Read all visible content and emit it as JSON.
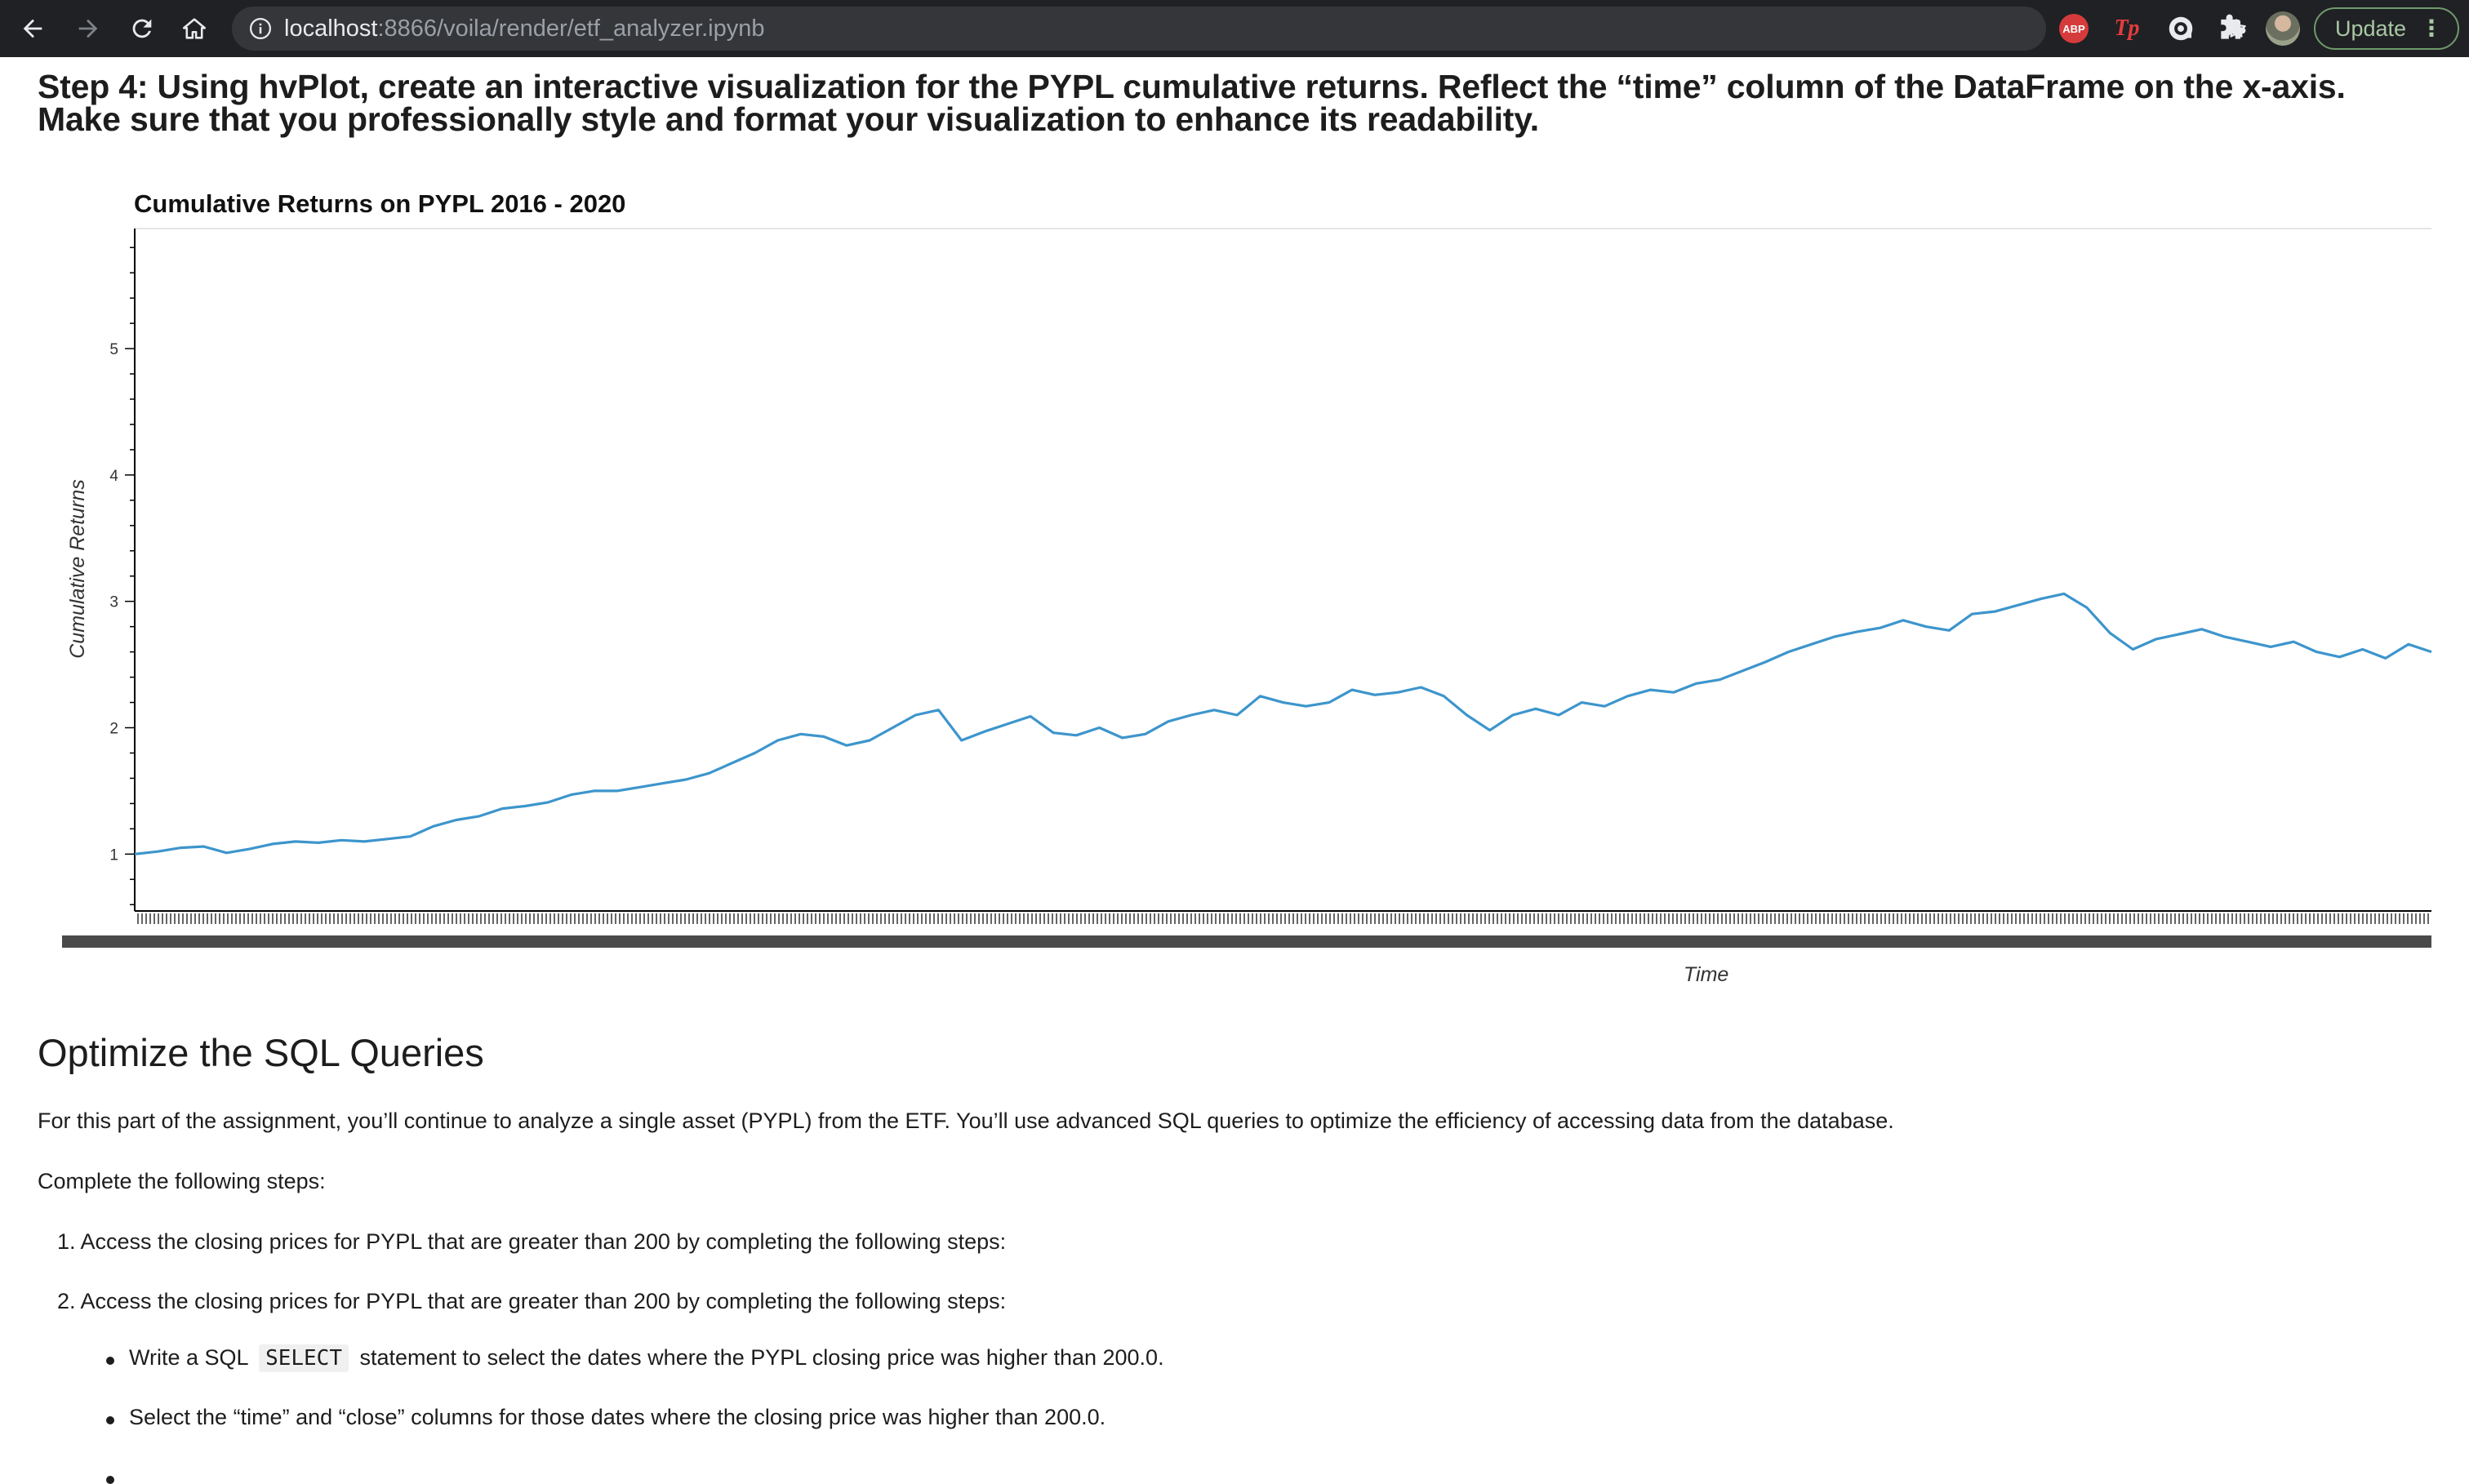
{
  "browser": {
    "url_host": "localhost",
    "url_path": ":8866/voila/render/etf_analyzer.ipynb",
    "extensions": [
      "ABP",
      "Tp"
    ],
    "update_label": "Update",
    "icons": [
      "back-arrow-icon",
      "forward-arrow-icon",
      "reload-icon",
      "home-icon",
      "info-icon",
      "share-icon",
      "star-icon",
      "puzzle-icon",
      "kebab-menu-icon"
    ]
  },
  "notebook": {
    "step_heading": "Step 4: Using hvPlot, create an interactive visualization for the PYPL cumulative returns. Reflect the “time” column of the DataFrame on the x-axis. Make sure that you professionally style and format your visualization to enhance its readability.",
    "section_heading": "Optimize the SQL Queries",
    "intro": "For this part of the assignment, you’ll continue to analyze a single asset (PYPL) from the ETF. You’ll use advanced SQL queries to optimize the efficiency of accessing data from the database.",
    "steps_intro": "Complete the following steps:",
    "list_items": [
      "1. Access the closing prices for PYPL that are greater than 200 by completing the following steps:",
      "2. Access the closing prices for PYPL that are greater than 200 by completing the following steps:"
    ],
    "sub_items": [
      {
        "before": "Write a SQL ",
        "code": "SELECT",
        "after": " statement to select the dates where the PYPL closing price was higher than 200.0."
      },
      {
        "before": "Select the “time” and “close” columns for those dates where the closing price was higher than 200.0."
      }
    ]
  },
  "chart_data": {
    "type": "line",
    "title": "Cumulative Returns on PYPL 2016 - 2020",
    "xlabel": "Time",
    "ylabel": "Cumulative Returns",
    "yticks": [
      1,
      2,
      3,
      4,
      5
    ],
    "ylim": [
      0.55,
      5.95
    ],
    "line_color": "#3d95cc",
    "grid": false,
    "series": [
      {
        "x": [
          0,
          1,
          2,
          3,
          4,
          5,
          6,
          7,
          8,
          9,
          10,
          11,
          12,
          13,
          14,
          15,
          16,
          17,
          18,
          19,
          20,
          21,
          22,
          23,
          24,
          25,
          26,
          27,
          28,
          29,
          30,
          31,
          32,
          33,
          34,
          35,
          36,
          37,
          38,
          39,
          40,
          41,
          42,
          43,
          44,
          45,
          46,
          47,
          48,
          49,
          50,
          51,
          52,
          53,
          54,
          55,
          56,
          57,
          58,
          59,
          60,
          61,
          62,
          63,
          64,
          65,
          66,
          67,
          68,
          69,
          70,
          71,
          72,
          73,
          74,
          75,
          76,
          77,
          78,
          79,
          80,
          81,
          82,
          83,
          84,
          85,
          86,
          87,
          88,
          89,
          90,
          91,
          92,
          93,
          94,
          95,
          96,
          97,
          98,
          99,
          100
        ],
        "values": [
          1.0,
          1.02,
          1.05,
          1.06,
          1.01,
          1.04,
          1.08,
          1.1,
          1.09,
          1.11,
          1.1,
          1.12,
          1.14,
          1.22,
          1.27,
          1.3,
          1.36,
          1.38,
          1.41,
          1.47,
          1.5,
          1.5,
          1.53,
          1.56,
          1.59,
          1.64,
          1.72,
          1.8,
          1.9,
          1.95,
          1.93,
          1.86,
          1.9,
          2.0,
          2.1,
          2.14,
          1.9,
          1.97,
          2.03,
          2.09,
          1.96,
          1.94,
          2.0,
          1.92,
          1.95,
          2.05,
          2.1,
          2.14,
          2.1,
          2.25,
          2.2,
          2.17,
          2.2,
          2.3,
          2.26,
          2.28,
          2.32,
          2.25,
          2.1,
          1.98,
          2.1,
          2.15,
          2.1,
          2.2,
          2.17,
          2.25,
          2.3,
          2.28,
          2.35,
          2.38,
          2.45,
          2.52,
          2.6,
          2.66,
          2.72,
          2.76,
          2.79,
          2.85,
          2.8,
          2.77,
          2.9,
          2.92,
          2.97,
          3.02,
          3.06,
          2.95,
          2.75,
          2.62,
          2.7,
          2.74,
          2.78,
          2.72,
          2.68,
          2.64,
          2.68,
          2.6,
          2.56,
          2.62,
          2.55,
          2.66,
          2.6
        ]
      }
    ]
  }
}
